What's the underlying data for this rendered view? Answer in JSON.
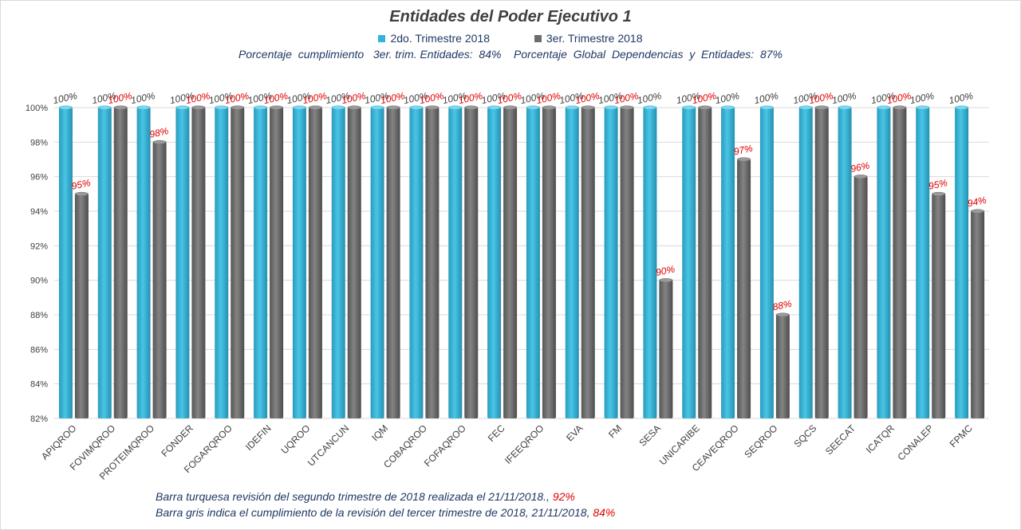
{
  "chart_data": {
    "type": "bar",
    "title": "Entidades del Poder Ejecutivo 1",
    "categories": [
      "APIQROO",
      "FOVIMQROO",
      "PROTEIMQROO",
      "FONDER",
      "FOGARQROO",
      "IDEFIN",
      "UQROO",
      "UTCANCUN",
      "IQM",
      "COBAQROO",
      "FOFAQROO",
      "FEC",
      "IFEEQROO",
      "EVA",
      "FM",
      "SESA",
      "UNICARIBE",
      "CEAVEQROO",
      "SEQROO",
      "SQCS",
      "SEECAT",
      "ICATQR",
      "CONALEP",
      "FPMC"
    ],
    "series": [
      {
        "name": "2do. Trimestre 2018",
        "color": "#31b5d9",
        "values": [
          100,
          100,
          100,
          100,
          100,
          100,
          100,
          100,
          100,
          100,
          100,
          100,
          100,
          100,
          100,
          100,
          100,
          100,
          100,
          100,
          100,
          100,
          100,
          100
        ]
      },
      {
        "name": "3er. Trimestre 2018",
        "color": "#6d6d6d",
        "values": [
          95,
          100,
          98,
          100,
          100,
          100,
          100,
          100,
          100,
          100,
          100,
          100,
          100,
          100,
          100,
          90,
          100,
          97,
          88,
          100,
          96,
          100,
          95,
          94
        ]
      }
    ],
    "ylim": [
      82,
      100
    ],
    "yticks": [
      "82%",
      "84%",
      "86%",
      "88%",
      "90%",
      "92%",
      "94%",
      "96%",
      "98%",
      "100%"
    ],
    "grid": true,
    "legend_position": "top",
    "label_colors": {
      "2do. Trimestre 2018": "#404040",
      "3er. Trimestre 2018": "#e00000"
    }
  },
  "summary_text": "Porcentaje  cumplimiento   3er. trim. Entidades:  84%    Porcentaje  Global  Dependencias  y  Entidades:  87%",
  "notes": {
    "line1_text": "Barra turquesa  revisión  del  segundo  trimestre  de 2018  realizada  el  21/11/2018., ",
    "line1_value": "92%",
    "line2_text": "Barra gris indica el cumplimiento  de la revisión del tercer trimestre de 2018,  21/11/2018,  ",
    "line2_value": "84%"
  }
}
